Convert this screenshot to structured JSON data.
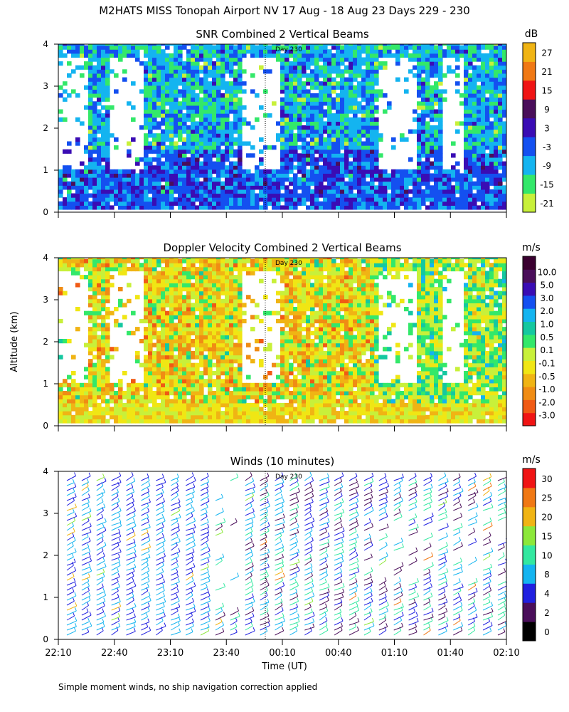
{
  "figure": {
    "title": "M2HATS MISS Tonopah Airport NV  17 Aug - 18 Aug 23 Days 229 - 230",
    "ylabel": "Altitude (km)",
    "xlabel": "Time (UT)",
    "footer": "Simple moment winds, no ship navigation correction applied",
    "day_marker": "Day 230"
  },
  "chart_data": [
    {
      "type": "heatmap",
      "title": "SNR Combined 2 Vertical Beams",
      "units": "dB",
      "x_ticks": [
        "22:10",
        "22:40",
        "23:10",
        "23:40",
        "00:10",
        "00:40",
        "01:10",
        "01:40",
        "02:10"
      ],
      "y_ticks": [
        "0",
        "1",
        "2",
        "3",
        "4"
      ],
      "ylim": [
        0,
        4
      ],
      "colorbar_labels": [
        "-21",
        "-15",
        "-9",
        "-3",
        "3",
        "9",
        "15",
        "21",
        "27"
      ],
      "colorbar_colors": [
        "#c8f03a",
        "#33e86a",
        "#14b4f0",
        "#1450f0",
        "#3a0cb4",
        "#4a0e5a",
        "#f01414",
        "#f07814",
        "#f0b414"
      ],
      "grid": false
    },
    {
      "type": "heatmap",
      "title": "Doppler Velocity Combined 2 Vertical Beams",
      "units": "m/s",
      "x_ticks": [
        "22:10",
        "22:40",
        "23:10",
        "23:40",
        "00:10",
        "00:40",
        "01:10",
        "01:40",
        "02:10"
      ],
      "y_ticks": [
        "0",
        "1",
        "2",
        "3",
        "4"
      ],
      "ylim": [
        0,
        4
      ],
      "colorbar_labels": [
        "-3.0",
        "-2.0",
        "-1.0",
        "-0.5",
        "-0.1",
        "0.1",
        "0.5",
        "1.0",
        "2.0",
        "3.0",
        "5.0",
        "10.0"
      ],
      "colorbar_colors": [
        "#f01414",
        "#f05a14",
        "#f08c14",
        "#f0b414",
        "#f0e614",
        "#c8f03a",
        "#33e86a",
        "#14c8a0",
        "#14b4f0",
        "#1450f0",
        "#3a0cb4",
        "#4a0e5a",
        "#3a0030"
      ],
      "grid": false
    },
    {
      "type": "scatter",
      "title": "Winds (10 minutes)",
      "units": "m/s",
      "x_ticks": [
        "22:10",
        "22:40",
        "23:10",
        "23:40",
        "00:10",
        "00:40",
        "01:10",
        "01:40",
        "02:10"
      ],
      "y_ticks": [
        "0",
        "1",
        "2",
        "3",
        "4"
      ],
      "ylim": [
        0,
        4
      ],
      "colorbar_labels": [
        "0",
        "2",
        "4",
        "8",
        "10",
        "15",
        "20",
        "25",
        "30"
      ],
      "colorbar_colors": [
        "#000000",
        "#4a0e5a",
        "#2020e0",
        "#14b4f0",
        "#33e8a0",
        "#8ce83a",
        "#f0b414",
        "#f07814",
        "#f01414"
      ],
      "grid": false
    }
  ]
}
